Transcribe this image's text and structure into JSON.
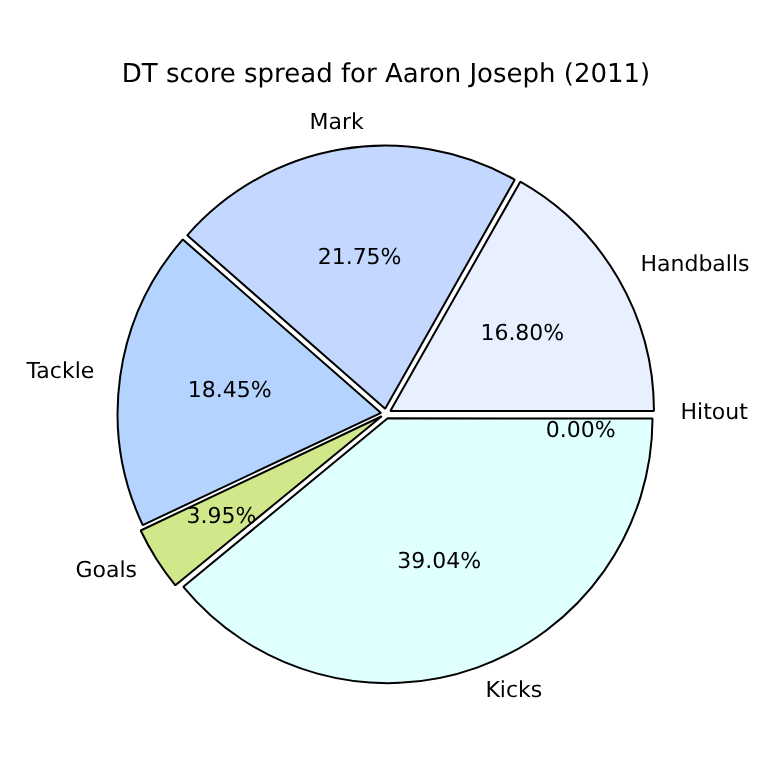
{
  "chart_data": {
    "type": "pie",
    "title": "DT score spread for Aaron Joseph (2011)",
    "categories": [
      "Kicks",
      "Goals",
      "Tackle",
      "Mark",
      "Handballs",
      "Hitout"
    ],
    "values": [
      39.04,
      3.95,
      18.45,
      21.75,
      16.8,
      0
    ],
    "colors": [
      "#e0ffff",
      "#d0e88a",
      "#b4d4ff",
      "#c4d8ff",
      "#e8f0ff",
      "#f0f0f0"
    ],
    "value_labels": [
      "39.04%",
      "3.95%",
      "18.45%",
      "21.75%",
      "16.80%",
      "0.00%"
    ],
    "legend": false
  }
}
